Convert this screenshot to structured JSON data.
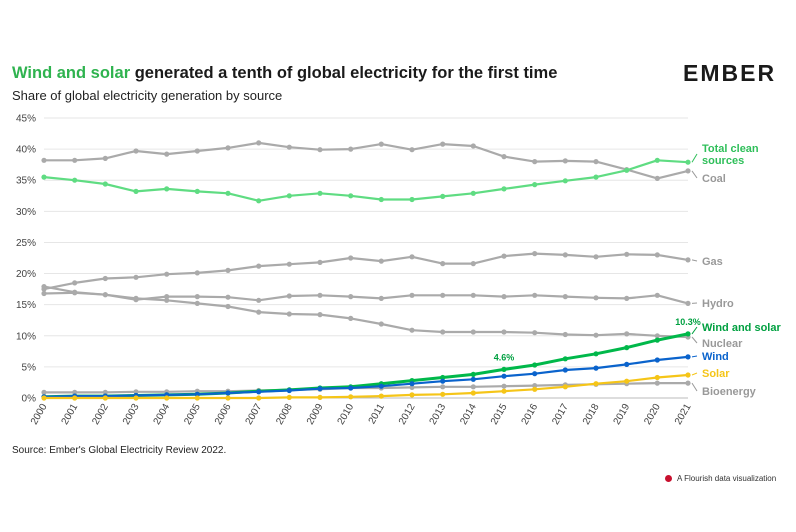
{
  "header": {
    "title_highlight": "Wind and solar",
    "title_rest": " generated a tenth of global electricity for the first time",
    "subtitle": "Share of global electricity generation by source",
    "logo_text": "EMBER"
  },
  "footer": {
    "source": "Source: Ember's Global Electricity Review 2022.",
    "credit": "A Flourish data visualization"
  },
  "chart_data": {
    "type": "line",
    "title": "Wind and solar generated a tenth of global electricity for the first time",
    "subtitle": "Share of global electricity generation by source",
    "x": [
      "2000",
      "2001",
      "2002",
      "2003",
      "2004",
      "2005",
      "2006",
      "2007",
      "2008",
      "2009",
      "2010",
      "2011",
      "2012",
      "2013",
      "2014",
      "2015",
      "2016",
      "2017",
      "2018",
      "2019",
      "2020",
      "2021"
    ],
    "ylim": [
      0,
      45
    ],
    "yticks": [
      "0%",
      "5%",
      "10%",
      "15%",
      "20%",
      "25%",
      "30%",
      "35%",
      "40%",
      "45%"
    ],
    "grid": true,
    "series": [
      {
        "name": "Coal",
        "color": "#aaaaaa",
        "values": [
          38.2,
          38.2,
          38.5,
          39.7,
          39.2,
          39.7,
          40.2,
          41.0,
          40.3,
          39.9,
          40.0,
          40.8,
          39.9,
          40.8,
          40.5,
          38.8,
          38.0,
          38.1,
          38.0,
          36.7,
          35.3,
          36.5
        ]
      },
      {
        "name": "Total clean sources",
        "color": "#5fdc82",
        "values": [
          35.5,
          35.0,
          34.4,
          33.2,
          33.6,
          33.2,
          32.9,
          31.7,
          32.5,
          32.9,
          32.5,
          31.9,
          31.9,
          32.4,
          32.9,
          33.6,
          34.3,
          34.9,
          35.5,
          36.6,
          38.2,
          37.9
        ]
      },
      {
        "name": "Gas",
        "color": "#aaaaaa",
        "values": [
          17.5,
          18.5,
          19.2,
          19.4,
          19.9,
          20.1,
          20.5,
          21.2,
          21.5,
          21.8,
          22.5,
          22.0,
          22.7,
          21.6,
          21.6,
          22.8,
          23.2,
          23.0,
          22.7,
          23.1,
          23.0,
          22.2
        ]
      },
      {
        "name": "Hydro",
        "color": "#aaaaaa",
        "values": [
          16.8,
          16.9,
          16.6,
          15.8,
          16.3,
          16.3,
          16.2,
          15.7,
          16.4,
          16.5,
          16.3,
          16.0,
          16.5,
          16.5,
          16.5,
          16.3,
          16.5,
          16.3,
          16.1,
          16.0,
          16.5,
          15.2
        ]
      },
      {
        "name": "Nuclear",
        "color": "#aaaaaa",
        "values": [
          17.9,
          17.0,
          16.6,
          16.0,
          15.7,
          15.2,
          14.7,
          13.8,
          13.5,
          13.4,
          12.8,
          11.9,
          10.9,
          10.6,
          10.6,
          10.6,
          10.5,
          10.2,
          10.1,
          10.3,
          10.0,
          9.8
        ]
      },
      {
        "name": "Wind and solar",
        "color": "#00b84a",
        "values": [
          0.2,
          0.3,
          0.3,
          0.4,
          0.5,
          0.6,
          0.8,
          1.1,
          1.3,
          1.6,
          1.8,
          2.3,
          2.8,
          3.3,
          3.8,
          4.6,
          5.3,
          6.3,
          7.1,
          8.1,
          9.3,
          10.3
        ]
      },
      {
        "name": "Wind",
        "color": "#0a63cc",
        "values": [
          0.2,
          0.3,
          0.3,
          0.4,
          0.5,
          0.6,
          0.8,
          1.0,
          1.2,
          1.5,
          1.6,
          1.9,
          2.3,
          2.7,
          3.0,
          3.5,
          3.9,
          4.5,
          4.8,
          5.4,
          6.1,
          6.6
        ]
      },
      {
        "name": "Solar",
        "color": "#f5c518",
        "values": [
          0.0,
          0.0,
          0.0,
          0.0,
          0.0,
          0.0,
          0.0,
          0.0,
          0.1,
          0.1,
          0.2,
          0.3,
          0.5,
          0.6,
          0.8,
          1.1,
          1.4,
          1.8,
          2.3,
          2.7,
          3.3,
          3.7
        ]
      },
      {
        "name": "Bioenergy",
        "color": "#aaaaaa",
        "values": [
          0.9,
          0.9,
          0.9,
          1.0,
          1.0,
          1.1,
          1.1,
          1.2,
          1.3,
          1.4,
          1.6,
          1.6,
          1.7,
          1.8,
          1.8,
          1.9,
          2.0,
          2.1,
          2.2,
          2.3,
          2.4,
          2.4
        ]
      }
    ],
    "annotations": [
      {
        "text": "4.6%",
        "series": "Wind and solar",
        "x": "2015"
      },
      {
        "text": "10.3%",
        "series": "Wind and solar",
        "x": "2021"
      }
    ],
    "labels": {
      "Total clean sources": [
        "Total clean",
        "sources"
      ],
      "Coal": "Coal",
      "Gas": "Gas",
      "Hydro": "Hydro",
      "Wind and solar": "Wind and solar",
      "Nuclear": "Nuclear",
      "Wind": "Wind",
      "Solar": "Solar",
      "Bioenergy": "Bioenergy"
    },
    "label_colors": {
      "Total clean sources": "#2fbf5a",
      "Coal": "#999999",
      "Gas": "#999999",
      "Hydro": "#999999",
      "Wind and solar": "#00a040",
      "Nuclear": "#999999",
      "Wind": "#0a63cc",
      "Solar": "#f5c518",
      "Bioenergy": "#999999"
    }
  }
}
